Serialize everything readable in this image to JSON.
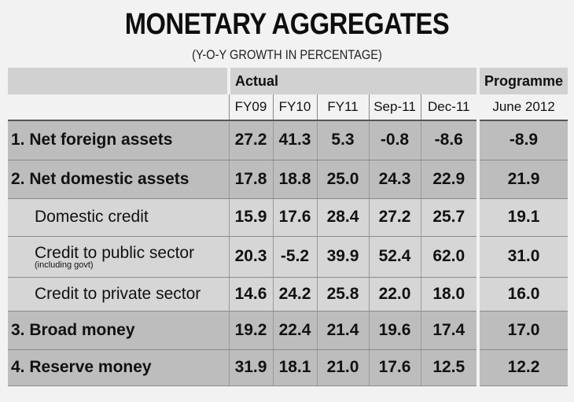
{
  "title": "MONETARY AGGREGATES",
  "subtitle": "(Y-O-Y GROWTH IN PERCENTAGE)",
  "chart_data": {
    "type": "table",
    "title": "MONETARY AGGREGATES",
    "subtitle": "(Y-O-Y GROWTH IN PERCENTAGE)",
    "group_headers": {
      "actual": "Actual",
      "programme": "Programme"
    },
    "columns": [
      "FY09",
      "FY10",
      "FY11",
      "Sep-11",
      "Dec-11",
      "June 2012"
    ],
    "rows": [
      {
        "label": "1. Net foreign assets",
        "note": "",
        "level": "main",
        "values": [
          "27.2",
          "41.3",
          "5.3",
          "-0.8",
          "-8.6",
          "-8.9"
        ]
      },
      {
        "label": "2. Net domestic assets",
        "note": "",
        "level": "main",
        "values": [
          "17.8",
          "18.8",
          "25.0",
          "24.3",
          "22.9",
          "21.9"
        ]
      },
      {
        "label": "Domestic credit",
        "note": "",
        "level": "sub",
        "values": [
          "15.9",
          "17.6",
          "28.4",
          "27.2",
          "25.7",
          "19.1"
        ]
      },
      {
        "label": "Credit to public sector",
        "note": "(including govt)",
        "level": "sub",
        "values": [
          "20.3",
          "-5.2",
          "39.9",
          "52.4",
          "62.0",
          "31.0"
        ]
      },
      {
        "label": "Credit to private sector",
        "note": "",
        "level": "sub",
        "values": [
          "14.6",
          "24.2",
          "25.8",
          "22.0",
          "18.0",
          "16.0"
        ]
      },
      {
        "label": "3. Broad money",
        "note": "",
        "level": "main",
        "values": [
          "19.2",
          "22.4",
          "21.4",
          "19.6",
          "17.4",
          "17.0"
        ]
      },
      {
        "label": "4. Reserve money",
        "note": "",
        "level": "main",
        "values": [
          "31.9",
          "18.1",
          "21.0",
          "17.6",
          "12.5",
          "12.2"
        ]
      }
    ]
  }
}
